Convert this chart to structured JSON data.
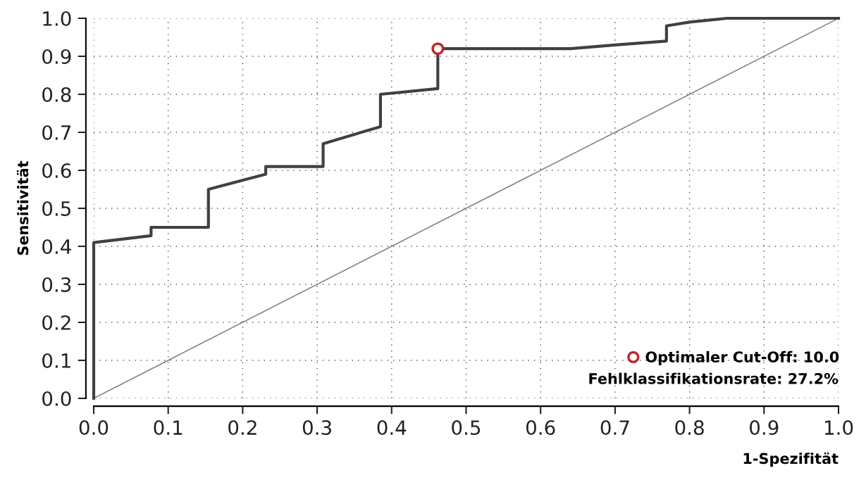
{
  "chart_data": {
    "type": "line",
    "xlabel": "1-Spezifität",
    "ylabel": "Sensitivität",
    "xlim": [
      0,
      1
    ],
    "ylim": [
      0,
      1
    ],
    "xticks": [
      {
        "value": 0,
        "label": "0.0"
      },
      0.1,
      0.2,
      0.3,
      0.4,
      0.5,
      0.6,
      0.7,
      0.8,
      0.9,
      {
        "value": 1,
        "label": "1.0"
      }
    ],
    "yticks": [
      {
        "value": 0,
        "label": "0.0"
      },
      0.1,
      0.2,
      0.3,
      0.4,
      0.5,
      0.6,
      0.7,
      0.8,
      0.9,
      {
        "value": 1,
        "label": "1.0"
      }
    ],
    "grid": true,
    "legend": "bottom right",
    "series": [
      {
        "color": "#404040",
        "x": [
          0,
          0,
          0.077,
          0.077,
          0.154,
          0.154,
          0.231,
          0.231,
          0.308,
          0.308,
          0.385,
          0.385,
          0.462,
          0.462,
          0.64,
          0.7,
          0.769,
          0.769,
          0.8,
          0.85,
          1.0
        ],
        "values": [
          0,
          0.41,
          0.428,
          0.45,
          0.45,
          0.55,
          0.59,
          0.61,
          0.61,
          0.67,
          0.715,
          0.8,
          0.815,
          0.92,
          0.92,
          0.93,
          0.94,
          0.98,
          0.99,
          1.0,
          1.0
        ]
      },
      {
        "color": "#808080",
        "x": [
          0,
          1
        ],
        "values": [
          0,
          1
        ]
      },
      {
        "type": "scatter",
        "name": "Optimaler Cut-Off: 10.0",
        "color": "#c0282d",
        "marker": "circle",
        "x": [
          0.462
        ],
        "values": [
          0.92
        ]
      }
    ],
    "annotations": [
      "Fehlklassifikationsrate: 27.2%"
    ]
  }
}
